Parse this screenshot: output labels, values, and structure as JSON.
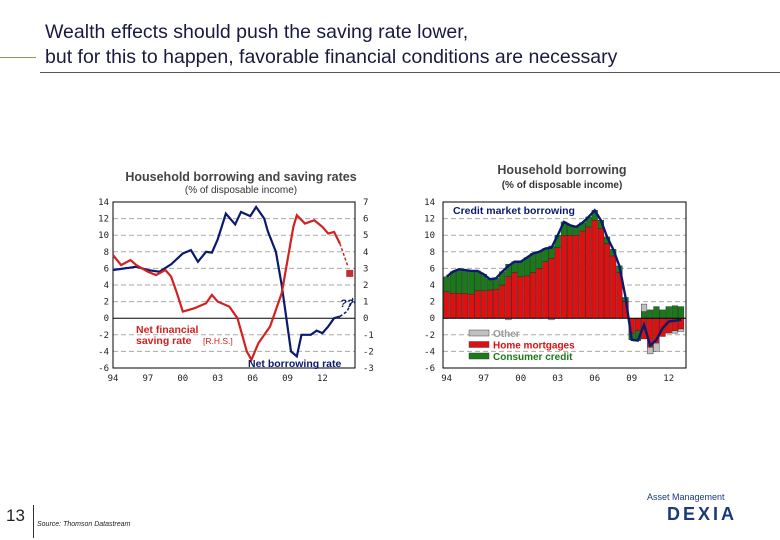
{
  "slide": {
    "title_line1": "Wealth effects should push the saving rate lower,",
    "title_line2": "but for this to happen, favorable financial conditions are necessary",
    "page_number": "13",
    "source": "Source: Thomson Datastream",
    "logo_top": "Asset Management",
    "logo_brand": "DEXIA"
  },
  "chart_data": [
    {
      "type": "line",
      "title": "Household borrowing and saving rates",
      "subtitle": "(% of disposable income)",
      "x_ticks": [
        "94",
        "97",
        "00",
        "03",
        "06",
        "09",
        "12"
      ],
      "x_tick_values": [
        1994,
        1997,
        2000,
        2003,
        2006,
        2009,
        2012
      ],
      "xlim": [
        1994,
        2014.8
      ],
      "ylim_left": [
        -6,
        14
      ],
      "y_ticks_left": [
        14,
        12,
        10,
        8,
        6,
        4,
        2,
        0,
        -2,
        -4,
        -6
      ],
      "ylim_right": [
        -3,
        7
      ],
      "y_ticks_right": [
        7,
        6,
        5,
        4,
        3,
        2,
        1,
        0,
        -1,
        -2,
        -3
      ],
      "grid": "horizontal dashed",
      "annotations": {
        "saving_label_1": "Net financial",
        "saving_label_2": "saving rate",
        "saving_label_rhs": "[R.H.S.]",
        "borrowing_label": "Net borrowing rate",
        "question": "?"
      },
      "series": [
        {
          "name": "Net borrowing rate",
          "axis": "left",
          "color": "#0a1a6e",
          "x": [
            1994,
            1995,
            1996,
            1997,
            1998,
            1999,
            2000,
            2000.7,
            2001.3,
            2002,
            2002.5,
            2003,
            2003.7,
            2004.5,
            2005,
            2005.8,
            2006.3,
            2007,
            2007.3,
            2008,
            2008.5,
            2009,
            2009.3,
            2009.8,
            2010.2,
            2011,
            2011.5,
            2012,
            2012.5,
            2013,
            2013.5
          ],
          "y": [
            5.8,
            6.0,
            6.2,
            5.8,
            5.6,
            6.5,
            7.8,
            8.2,
            6.8,
            8.0,
            7.9,
            9.5,
            12.6,
            11.3,
            12.8,
            12.3,
            13.4,
            12.0,
            10.5,
            8.0,
            4.0,
            -1.0,
            -4.0,
            -4.6,
            -2.0,
            -2.0,
            -1.5,
            -1.8,
            -1.0,
            0.0,
            0.2
          ],
          "projection_x": [
            2013.5,
            2014.1,
            2014.4,
            2014.6,
            2014.8
          ],
          "projection_y": [
            0.2,
            0.8,
            1.6,
            2.3,
            1.8
          ]
        },
        {
          "name": "Net financial saving rate",
          "axis": "right",
          "color": "#d42020",
          "x": [
            1994,
            1994.7,
            1995.5,
            1996,
            1997,
            1997.7,
            1998.5,
            1999,
            1999.5,
            2000,
            2000.5,
            2001,
            2002,
            2002.5,
            2003,
            2004,
            2004.7,
            2005.5,
            2005.9,
            2006.5,
            2007.5,
            2008,
            2008.5,
            2009,
            2009.5,
            2009.8,
            2010.5,
            2011.3,
            2012,
            2012.5,
            2013,
            2013.5
          ],
          "y": [
            3.8,
            3.2,
            3.5,
            3.2,
            2.8,
            2.6,
            2.9,
            2.5,
            1.5,
            0.4,
            0.5,
            0.6,
            0.9,
            1.4,
            1.0,
            0.7,
            0.0,
            -2.0,
            -2.5,
            -1.5,
            -0.5,
            0.5,
            1.5,
            3.5,
            5.5,
            6.2,
            5.7,
            5.9,
            5.5,
            5.1,
            5.2,
            4.5
          ],
          "projection_x": [
            2013.5,
            2014.2
          ],
          "projection_y": [
            4.5,
            3.1
          ],
          "forecast_point": [
            2014.35,
            2.7
          ]
        }
      ]
    },
    {
      "type": "bar",
      "stacked": true,
      "title": "Household borrowing",
      "subtitle": "(% of disposable income)",
      "x_ticks": [
        "94",
        "97",
        "00",
        "03",
        "06",
        "09",
        "12"
      ],
      "x_tick_values": [
        1994,
        1997,
        2000,
        2003,
        2006,
        2009,
        2012
      ],
      "xlim": [
        1993.7,
        2013.4
      ],
      "ylim": [
        -6,
        14
      ],
      "y_ticks": [
        14,
        12,
        10,
        8,
        6,
        4,
        2,
        0,
        -2,
        -4,
        -6
      ],
      "grid": "horizontal dashed",
      "line_label": "Credit market borrowing",
      "legend_position": "bottom-left",
      "x": [
        1994,
        1994.5,
        1995,
        1995.5,
        1996,
        1996.5,
        1997,
        1997.5,
        1998,
        1998.5,
        1999,
        1999.5,
        2000,
        2000.5,
        2001,
        2001.5,
        2002,
        2002.5,
        2003,
        2003.5,
        2004,
        2004.5,
        2005,
        2005.5,
        2006,
        2006.5,
        2007,
        2007.5,
        2008,
        2008.5,
        2009,
        2009.5,
        2010,
        2010.5,
        2011,
        2011.5,
        2012,
        2012.5,
        2013
      ],
      "series": [
        {
          "name": "Home mortgages",
          "color": "#e01010",
          "values": [
            3.2,
            3.0,
            3.0,
            3.0,
            2.9,
            3.3,
            3.3,
            3.4,
            3.5,
            4.0,
            5.0,
            5.5,
            5.0,
            5.1,
            5.5,
            6.0,
            6.8,
            7.2,
            8.5,
            10.0,
            10.0,
            10.0,
            10.5,
            11.0,
            11.8,
            10.8,
            9.0,
            7.5,
            5.5,
            2.0,
            -1.8,
            -1.5,
            -2.5,
            -3.5,
            -3.0,
            -2.2,
            -1.8,
            -1.5,
            -1.3
          ]
        },
        {
          "name": "Consumer credit",
          "color": "#1a7a1a",
          "values": [
            1.8,
            2.6,
            2.9,
            2.8,
            2.8,
            2.4,
            2.0,
            1.3,
            1.3,
            1.6,
            1.5,
            1.3,
            1.8,
            2.2,
            2.3,
            2.0,
            1.6,
            1.5,
            1.5,
            1.6,
            1.2,
            1.0,
            1.0,
            1.2,
            1.2,
            1.0,
            0.8,
            0.8,
            0.8,
            0.5,
            -0.8,
            -1.2,
            0.8,
            1.0,
            1.4,
            1.0,
            1.4,
            1.5,
            1.4
          ]
        },
        {
          "name": "Other",
          "color": "#c0c0c0",
          "values": [
            0,
            0,
            0,
            0,
            0,
            0,
            0,
            0,
            0,
            0,
            -0.2,
            0,
            0,
            0,
            0,
            0,
            0,
            -0.2,
            0,
            0,
            0,
            0,
            0,
            0,
            0,
            0,
            0,
            0,
            0,
            0,
            0,
            0,
            0.9,
            -0.8,
            -1.0,
            0,
            0,
            -0.3,
            -0.3
          ]
        }
      ],
      "line_color": "#0a1a6e"
    }
  ]
}
